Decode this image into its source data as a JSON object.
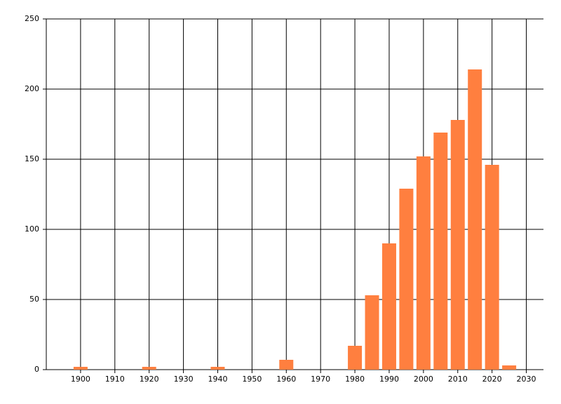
{
  "chart_data": {
    "type": "bar",
    "x": [
      1900,
      1920,
      1940,
      1960,
      1980,
      1985,
      1990,
      1995,
      2000,
      2005,
      2010,
      2015,
      2020,
      2025
    ],
    "values": [
      2,
      2,
      2,
      7,
      17,
      53,
      90,
      129,
      152,
      169,
      178,
      214,
      146,
      3
    ],
    "color": "#ff7f3f",
    "xlim": [
      1890,
      2035
    ],
    "xticks": [
      1900,
      1910,
      1920,
      1930,
      1940,
      1950,
      1960,
      1970,
      1980,
      1990,
      2000,
      2010,
      2020,
      2030
    ],
    "ylim": [
      0,
      250
    ],
    "yticks": [
      0,
      50,
      100,
      150,
      200,
      250
    ],
    "grid": true
  }
}
